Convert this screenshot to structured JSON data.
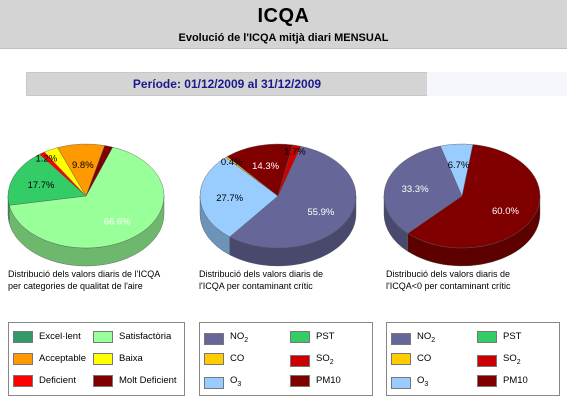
{
  "page": {
    "title": "ICQA",
    "subtitle": "Evolució de l'ICQA mitjà diari MENSUAL",
    "period": "Període: 01/12/2009 al 31/12/2009"
  },
  "chart_data": [
    {
      "type": "pie",
      "title": "Distribució dels valors diaris de l'ICQA per categories de qualitat de l'aire",
      "caption_lines": [
        "Distribució dels valors diaris de l'ICQA",
        "per categories de qualitat de l'aire"
      ],
      "slices": [
        {
          "name": "Satisfactòria",
          "value": 66.6,
          "label": "66.6%",
          "color": "#99ff99"
        },
        {
          "name": "Excel·lent",
          "value": 17.7,
          "label": "17.7%",
          "color": "#33cc66"
        },
        {
          "name": "Deficient",
          "value": 1.2,
          "label": "1.2%",
          "color": "#ff0000"
        },
        {
          "name": "Baixa",
          "value": 3.0,
          "label": "",
          "color": "#ffff00"
        },
        {
          "name": "Acceptable",
          "value": 9.8,
          "label": "9.8%",
          "color": "#ff9900"
        },
        {
          "name": "Molt Deficient",
          "value": 1.7,
          "label": "",
          "color": "#800000"
        }
      ],
      "legend": [
        {
          "name": "Excel·lent",
          "color": "#339966"
        },
        {
          "name": "Satisfactòria",
          "color": "#99ff99"
        },
        {
          "name": "Acceptable",
          "color": "#ff9900"
        },
        {
          "name": "Baixa",
          "color": "#ffff00"
        },
        {
          "name": "Deficient",
          "color": "#ff0000"
        },
        {
          "name": "Molt Deficient",
          "color": "#800000"
        }
      ]
    },
    {
      "type": "pie",
      "title": "Distribució dels valors diaris de l'ICQA per contaminant crític",
      "caption_lines": [
        "Distribució dels valors diaris de",
        "l'ICQA per contaminant crític"
      ],
      "slices": [
        {
          "name": "NO2",
          "value": 55.9,
          "label": "55.9%",
          "color": "#666699"
        },
        {
          "name": "O3",
          "value": 27.7,
          "label": "27.7%",
          "color": "#99ccff"
        },
        {
          "name": "CO",
          "value": 0.4,
          "label": "0.4%",
          "color": "#ffcc00"
        },
        {
          "name": "PM10",
          "value": 14.3,
          "label": "14.3%",
          "color": "#800000"
        },
        {
          "name": "SO2",
          "value": 1.7,
          "label": "1.7%",
          "color": "#cc0000"
        }
      ],
      "legend": [
        {
          "name": "NO",
          "sub": "2",
          "color": "#666699"
        },
        {
          "name": "PST",
          "sub": "",
          "color": "#33cc66"
        },
        {
          "name": "CO",
          "sub": "",
          "color": "#ffcc00"
        },
        {
          "name": "SO",
          "sub": "2",
          "color": "#cc0000"
        },
        {
          "name": "O",
          "sub": "3",
          "color": "#99ccff"
        },
        {
          "name": "PM10",
          "sub": "",
          "color": "#800000"
        }
      ]
    },
    {
      "type": "pie",
      "title": "Distribució dels valors diaris de l'ICQA<0 per contaminant crític",
      "caption_lines": [
        "Distribució dels valors diaris de",
        "l'ICQA<0 per contaminant crític"
      ],
      "slices": [
        {
          "name": "PM10",
          "value": 60.0,
          "label": "60.0%",
          "color": "#800000"
        },
        {
          "name": "NO2",
          "value": 33.3,
          "label": "33.3%",
          "color": "#666699"
        },
        {
          "name": "O3",
          "value": 6.7,
          "label": "6.7%",
          "color": "#99ccff"
        }
      ],
      "legend": [
        {
          "name": "NO",
          "sub": "2",
          "color": "#666699"
        },
        {
          "name": "PST",
          "sub": "",
          "color": "#33cc66"
        },
        {
          "name": "CO",
          "sub": "",
          "color": "#ffcc00"
        },
        {
          "name": "SO",
          "sub": "2",
          "color": "#cc0000"
        },
        {
          "name": "O",
          "sub": "3",
          "color": "#99ccff"
        },
        {
          "name": "PM10",
          "sub": "",
          "color": "#800000"
        }
      ]
    }
  ]
}
